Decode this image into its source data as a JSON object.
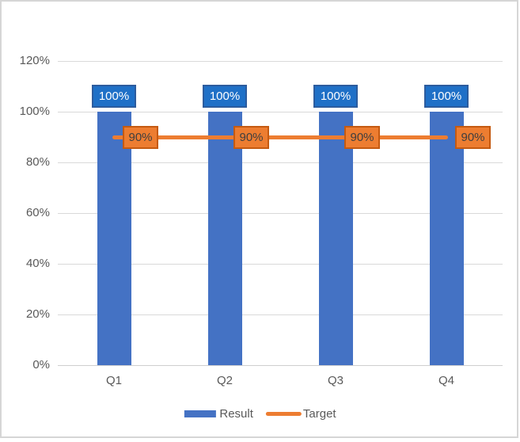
{
  "chart": {
    "colors": {
      "background": "#FFFFFF",
      "frame_border": "#D6D6D6",
      "gridline": "#D9D9D9",
      "axis_line": "#CFCFCF",
      "axis_text": "#595959",
      "bar_fill": "#4472C4",
      "bar_label_fill": "#1F70C7",
      "bar_label_border": "#2C5C9E",
      "bar_label_text": "#FFFFFF",
      "line_color": "#ED7D31",
      "line_label_fill": "#ED7D31",
      "line_label_border": "#C55A11",
      "line_label_text": "#3F3F3F"
    }
  },
  "chart_data": {
    "type": "bar+line combo",
    "title": "",
    "xlabel": "",
    "ylabel": "",
    "categories": [
      "Q1",
      "Q2",
      "Q3",
      "Q4"
    ],
    "series": [
      {
        "name": "Result",
        "type": "bar",
        "values": [
          100,
          100,
          100,
          100
        ],
        "labels": [
          "100%",
          "100%",
          "100%",
          "100%"
        ],
        "color": "#4472C4"
      },
      {
        "name": "Target",
        "type": "line",
        "values": [
          90,
          90,
          90,
          90
        ],
        "labels": [
          "90%",
          "90%",
          "90%",
          "90%"
        ],
        "color": "#ED7D31"
      }
    ],
    "ylim": [
      0,
      120
    ],
    "ytick_step": 20,
    "yticks": [
      "0%",
      "20%",
      "40%",
      "60%",
      "80%",
      "100%",
      "120%"
    ],
    "grid": true,
    "legend_position": "bottom"
  }
}
